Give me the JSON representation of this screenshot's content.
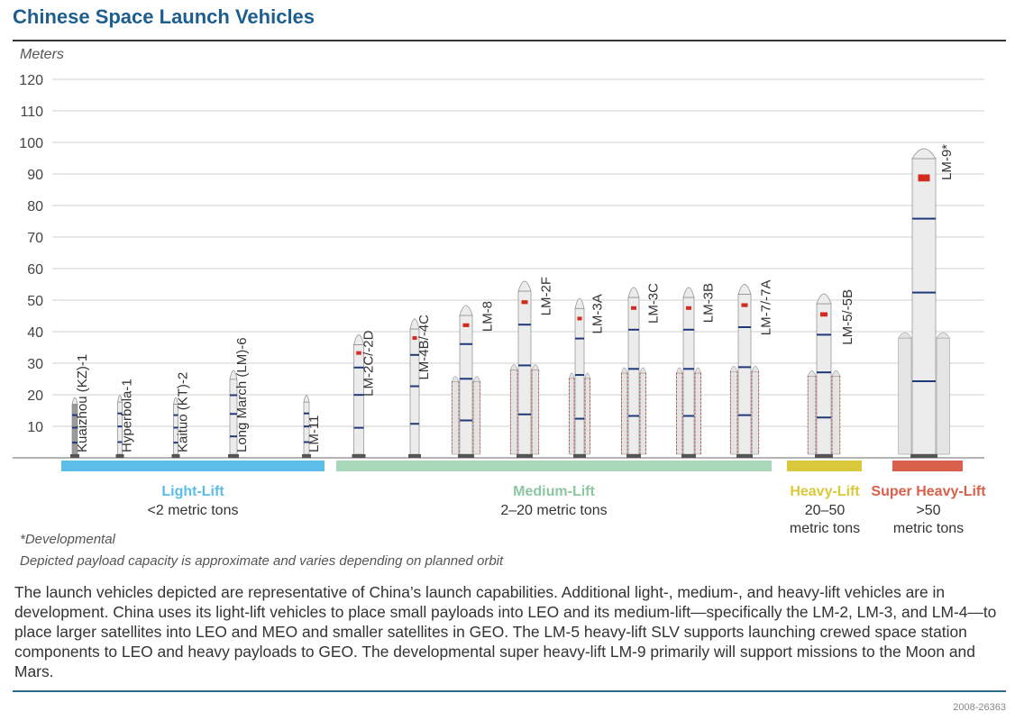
{
  "title": "Chinese Space Launch Vehicles",
  "units_label": "Meters",
  "footnote_developmental": "*Developmental",
  "footnote_payload": "Depicted payload capacity is approximate and varies depending on planned orbit",
  "description": "The launch vehicles depicted are representative of China’s launch capabilities. Additional light-, medium-, and heavy-lift vehicles are in development. China uses its light-lift vehicles to place small payloads into LEO and its medium-lift—specifically the LM-2, LM-3, and LM-4—to place larger satellites into LEO and MEO and smaller satellites in GEO. The LM-5 heavy-lift SLV supports launching crewed space station components to LEO and heavy payloads to GEO. The developmental super heavy-lift LM-9 primarily will support missions to the Moon and Mars.",
  "graphic_code": "2008-26363",
  "categories": {
    "light": {
      "name": "Light-Lift",
      "sub": "<2 metric tons",
      "color": "#5bbde8"
    },
    "medium": {
      "name": "Medium-Lift",
      "sub": "2–20 metric tons",
      "color": "#a8d8b9"
    },
    "heavy": {
      "name": "Heavy-Lift",
      "sub1": "20–50",
      "sub2": "metric tons",
      "color": "#d9c93a"
    },
    "super": {
      "name": "Super Heavy-Lift",
      "sub1": ">50",
      "sub2": "metric tons",
      "color": "#d9604a"
    }
  },
  "chart_data": {
    "type": "bar",
    "title": "Chinese Space Launch Vehicles",
    "ylabel": "Meters",
    "ylim": [
      0,
      120
    ],
    "yticks": [
      10,
      20,
      30,
      40,
      50,
      60,
      70,
      80,
      90,
      100,
      110,
      120
    ],
    "grid": true,
    "vehicles": [
      {
        "label": "Kuaizhou (KZ)-1",
        "height_m": 20,
        "category": "light"
      },
      {
        "label": "Hyperbola-1",
        "height_m": 20.8,
        "category": "light"
      },
      {
        "label": "Kaituo (KT)-2",
        "height_m": 20,
        "category": "light"
      },
      {
        "label": "Long March (LM)-6",
        "height_m": 29.3,
        "category": "light"
      },
      {
        "label": "LM-11",
        "height_m": 20.8,
        "category": "light"
      },
      {
        "label": "LM-2C/-2D",
        "height_m": 41,
        "category": "medium"
      },
      {
        "label": "LM-4B/-4C",
        "height_m": 46,
        "category": "medium"
      },
      {
        "label": "LM-8",
        "height_m": 50.3,
        "category": "medium"
      },
      {
        "label": "LM-2F",
        "height_m": 58,
        "category": "medium"
      },
      {
        "label": "LM-3A",
        "height_m": 52.5,
        "category": "medium"
      },
      {
        "label": "LM-3C",
        "height_m": 56,
        "category": "medium"
      },
      {
        "label": "LM-3B",
        "height_m": 56,
        "category": "medium"
      },
      {
        "label": "LM-7/-7A",
        "height_m": 57,
        "category": "medium"
      },
      {
        "label": "LM-5/-5B",
        "height_m": 54,
        "category": "heavy"
      },
      {
        "label": "LM-9*",
        "height_m": 100,
        "category": "super"
      }
    ]
  }
}
